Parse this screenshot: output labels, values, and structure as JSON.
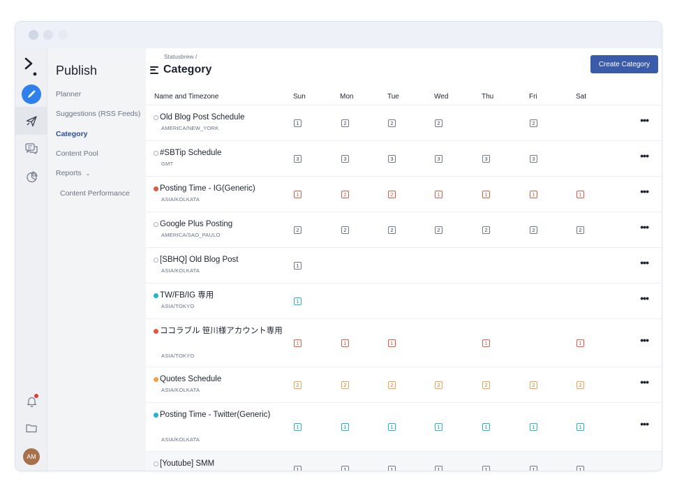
{
  "window": {
    "dots": [
      "close",
      "minimize",
      "zoom"
    ]
  },
  "iconbar": {
    "icons": [
      "statusbrew-logo",
      "compose-icon",
      "publish-icon",
      "engage-icon",
      "reports-icon",
      "bell-icon",
      "folder-icon"
    ],
    "avatar_initials": "AM"
  },
  "subnav": {
    "title": "Publish",
    "items": [
      {
        "label": "Planner",
        "active": false
      },
      {
        "label": "Suggestions (RSS Feeds)",
        "active": false
      },
      {
        "label": "Category",
        "active": true
      },
      {
        "label": "Content Pool",
        "active": false
      },
      {
        "label": "Reports",
        "active": false,
        "expandable": true
      },
      {
        "label": "Content Performance",
        "active": false,
        "sub": true
      }
    ]
  },
  "header": {
    "breadcrumb": "Statusbrew /",
    "title": "Category",
    "create_button": "Create Category"
  },
  "table": {
    "columns": [
      "Name and Timezone",
      "Sun",
      "Mon",
      "Tue",
      "Wed",
      "Thu",
      "Fri",
      "Sat"
    ],
    "rows": [
      {
        "name": "Old Blog Post Schedule",
        "timezone": "AMERICA/NEW_YORK",
        "color": "none",
        "counts": [
          "1",
          "2",
          "2",
          "2",
          "",
          "2",
          ""
        ]
      },
      {
        "name": "#SBTip Schedule",
        "timezone": "GMT",
        "color": "none",
        "counts": [
          "3",
          "3",
          "3",
          "3",
          "3",
          "3",
          ""
        ]
      },
      {
        "name": "Posting Time - IG(Generic)",
        "timezone": "ASIA/KOLKATA",
        "color": "red",
        "counts": [
          "1",
          "2",
          "2",
          "1",
          "1",
          "1",
          "1"
        ]
      },
      {
        "name": "Google Plus Posting",
        "timezone": "AMERICA/SAO_PAULO",
        "color": "none",
        "counts": [
          "2",
          "2",
          "2",
          "2",
          "2",
          "2",
          "2"
        ]
      },
      {
        "name": "[SBHQ] Old Blog Post",
        "timezone": "ASIA/KOLKATA",
        "color": "none",
        "counts": [
          "1",
          "",
          "",
          "",
          "",
          "",
          ""
        ]
      },
      {
        "name": "TW/FB/IG 専用",
        "timezone": "ASIA/TOKYO",
        "color": "cyan",
        "counts": [
          "1",
          "",
          "",
          "",
          "",
          "",
          ""
        ]
      },
      {
        "name": "ココラブル 笹川様アカウント専用",
        "timezone": "ASIA/TOKYO",
        "color": "red",
        "counts": [
          "1",
          "1",
          "1",
          "",
          "1",
          "",
          "1"
        ]
      },
      {
        "name": "Quotes Schedule",
        "timezone": "ASIA/KOLKATA",
        "color": "orange",
        "counts": [
          "2",
          "2",
          "2",
          "2",
          "2",
          "2",
          "2"
        ]
      },
      {
        "name": "Posting Time - Twitter(Generic)",
        "timezone": "ASIA/KOLKATA",
        "color": "cyan",
        "counts": [
          "1",
          "1",
          "1",
          "1",
          "1",
          "1",
          "1"
        ]
      },
      {
        "name": "[Youtube] SMM",
        "timezone": "",
        "color": "none",
        "counts": [
          "1",
          "1",
          "1",
          "1",
          "1",
          "1",
          "1"
        ]
      }
    ]
  },
  "colors": {
    "red": "#e8553d",
    "cyan": "#1eb4d2",
    "orange": "#f5a044",
    "accent": "#3a5ba9",
    "active_nav": "#2d4e98"
  }
}
